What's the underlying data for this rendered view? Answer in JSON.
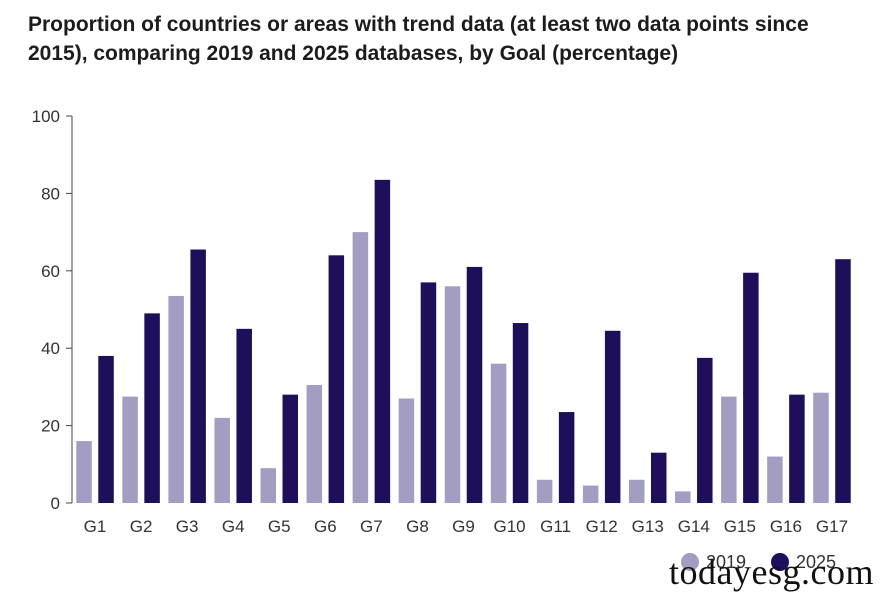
{
  "title": "Proportion of countries or areas with trend data (at least two data points since 2015), comparing 2019 and 2025 databases, by Goal (percentage)",
  "watermark": "todayesg.com",
  "chart_data": {
    "type": "bar",
    "title": "Proportion of countries or areas with trend data (at least two data points since 2015), comparing 2019 and 2025 databases, by Goal (percentage)",
    "xlabel": "",
    "ylabel": "",
    "ylim": [
      0,
      100
    ],
    "yticks": [
      0,
      20,
      40,
      60,
      80,
      100
    ],
    "categories": [
      "G1",
      "G2",
      "G3",
      "G4",
      "G5",
      "G6",
      "G7",
      "G8",
      "G9",
      "G10",
      "G11",
      "G12",
      "G13",
      "G14",
      "G15",
      "G16",
      "G17"
    ],
    "series": [
      {
        "name": "2019",
        "color": "#a39dc2",
        "values": [
          16,
          27.5,
          53.5,
          22,
          9,
          30.5,
          70,
          27,
          56,
          36,
          6,
          4.5,
          6,
          3,
          27.5,
          12,
          28.5
        ]
      },
      {
        "name": "2025",
        "color": "#1f0e5a",
        "values": [
          38,
          49,
          65.5,
          45,
          28,
          64,
          83.5,
          57,
          61,
          46.5,
          23.5,
          44.5,
          13,
          37.5,
          59.5,
          28,
          63
        ]
      }
    ],
    "grid": false,
    "legend": {
      "position": "bottom-right"
    }
  }
}
